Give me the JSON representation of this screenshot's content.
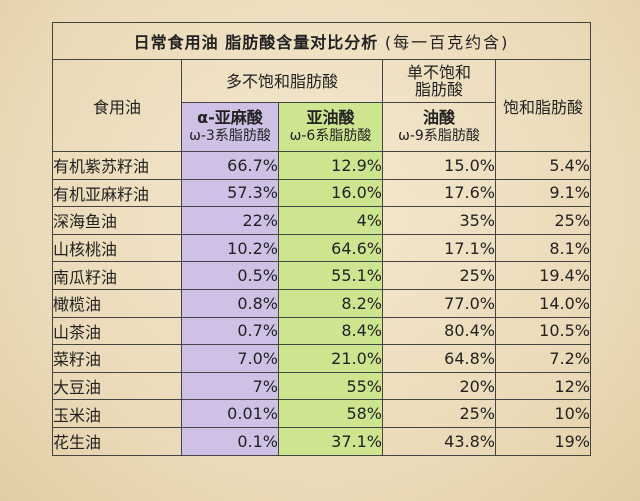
{
  "title": "日常食用油 脂肪酸含量对比分析",
  "subtitle": "(每一百克约含)",
  "header": {
    "row_label": "食用油",
    "poly_group": "多不饱和脂肪酸",
    "mono_group_line1": "单不饱和",
    "mono_group_line2": "脂肪酸",
    "saturated": "饱和脂肪酸",
    "alpha_name": "α-亚麻酸",
    "alpha_type": "ω-3系脂肪酸",
    "linoleic_name": "亚油酸",
    "linoleic_type": "ω-6系脂肪酸",
    "oleic_name": "油酸",
    "oleic_type": "ω-9系脂肪酸"
  },
  "colors": {
    "omega3_bg": "#cfc1e6",
    "omega6_bg": "#cde58f"
  },
  "rows": [
    {
      "oil": "有机紫苏籽油",
      "alpha": "66.7%",
      "linoleic": "12.9%",
      "oleic": "15.0%",
      "saturated": "5.4%"
    },
    {
      "oil": "有机亚麻籽油",
      "alpha": "57.3%",
      "linoleic": "16.0%",
      "oleic": "17.6%",
      "saturated": "9.1%"
    },
    {
      "oil": "深海鱼油",
      "alpha": "22%",
      "linoleic": "4%",
      "oleic": "35%",
      "saturated": "25%"
    },
    {
      "oil": "山核桃油",
      "alpha": "10.2%",
      "linoleic": "64.6%",
      "oleic": "17.1%",
      "saturated": "8.1%"
    },
    {
      "oil": "南瓜籽油",
      "alpha": "0.5%",
      "linoleic": "55.1%",
      "oleic": "25%",
      "saturated": "19.4%"
    },
    {
      "oil": "橄榄油",
      "alpha": "0.8%",
      "linoleic": "8.2%",
      "oleic": "77.0%",
      "saturated": "14.0%"
    },
    {
      "oil": "山茶油",
      "alpha": "0.7%",
      "linoleic": "8.4%",
      "oleic": "80.4%",
      "saturated": "10.5%"
    },
    {
      "oil": "菜籽油",
      "alpha": "7.0%",
      "linoleic": "21.0%",
      "oleic": "64.8%",
      "saturated": "7.2%"
    },
    {
      "oil": "大豆油",
      "alpha": "7%",
      "linoleic": "55%",
      "oleic": "20%",
      "saturated": "12%"
    },
    {
      "oil": "玉米油",
      "alpha": "0.01%",
      "linoleic": "58%",
      "oleic": "25%",
      "saturated": "10%"
    },
    {
      "oil": "花生油",
      "alpha": "0.1%",
      "linoleic": "37.1%",
      "oleic": "43.8%",
      "saturated": "19%"
    }
  ]
}
